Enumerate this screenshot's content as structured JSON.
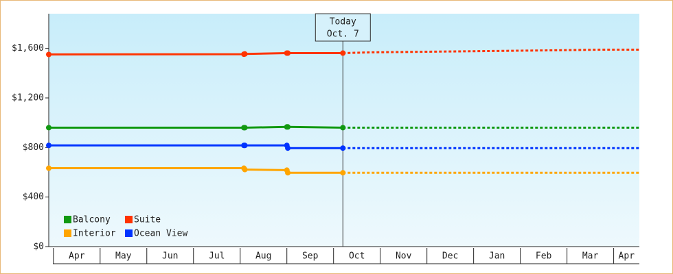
{
  "chart_data": {
    "type": "line",
    "annotation": [
      "Today",
      "Oct. 7"
    ],
    "today_x": 6.2,
    "categories": [
      "Apr",
      "May",
      "Jun",
      "Jul",
      "Aug",
      "Sep",
      "Oct",
      "Nov",
      "Dec",
      "Jan",
      "Feb",
      "Mar",
      "Apr"
    ],
    "xticks": [
      0,
      1,
      2,
      3,
      4,
      5,
      6,
      7,
      8,
      9,
      10,
      11,
      12
    ],
    "xlim": [
      -0.1,
      12.55
    ],
    "x": [
      -0.1,
      4.08,
      4.1,
      5.0,
      5.02,
      6.2,
      6.8,
      9.4,
      10.6,
      11.8,
      12.55
    ],
    "ylim": [
      0,
      1880
    ],
    "yticks": [
      {
        "value": 0,
        "label": "$0"
      },
      {
        "value": 400,
        "label": "$400"
      },
      {
        "value": 800,
        "label": "$800"
      },
      {
        "value": 1200,
        "label": "$1,200"
      },
      {
        "value": 1600,
        "label": "$1,600"
      }
    ],
    "legend": "bottom-left",
    "series": [
      {
        "name": "Balcony",
        "color": "#119911",
        "values": [
          960,
          960,
          960,
          966,
          966,
          960,
          960,
          960,
          960,
          960,
          960
        ]
      },
      {
        "name": "Suite",
        "color": "#ff3300",
        "values": [
          1551,
          1553,
          1555,
          1562,
          1562,
          1562,
          1568,
          1579,
          1584,
          1590,
          1590
        ]
      },
      {
        "name": "Interior",
        "color": "#ffa500",
        "values": [
          633,
          633,
          622,
          617,
          596,
          596,
          596,
          596,
          596,
          596,
          596
        ]
      },
      {
        "name": "Ocean View",
        "color": "#0033ff",
        "values": [
          817,
          817,
          817,
          817,
          795,
          795,
          795,
          795,
          795,
          795,
          795
        ]
      }
    ]
  }
}
